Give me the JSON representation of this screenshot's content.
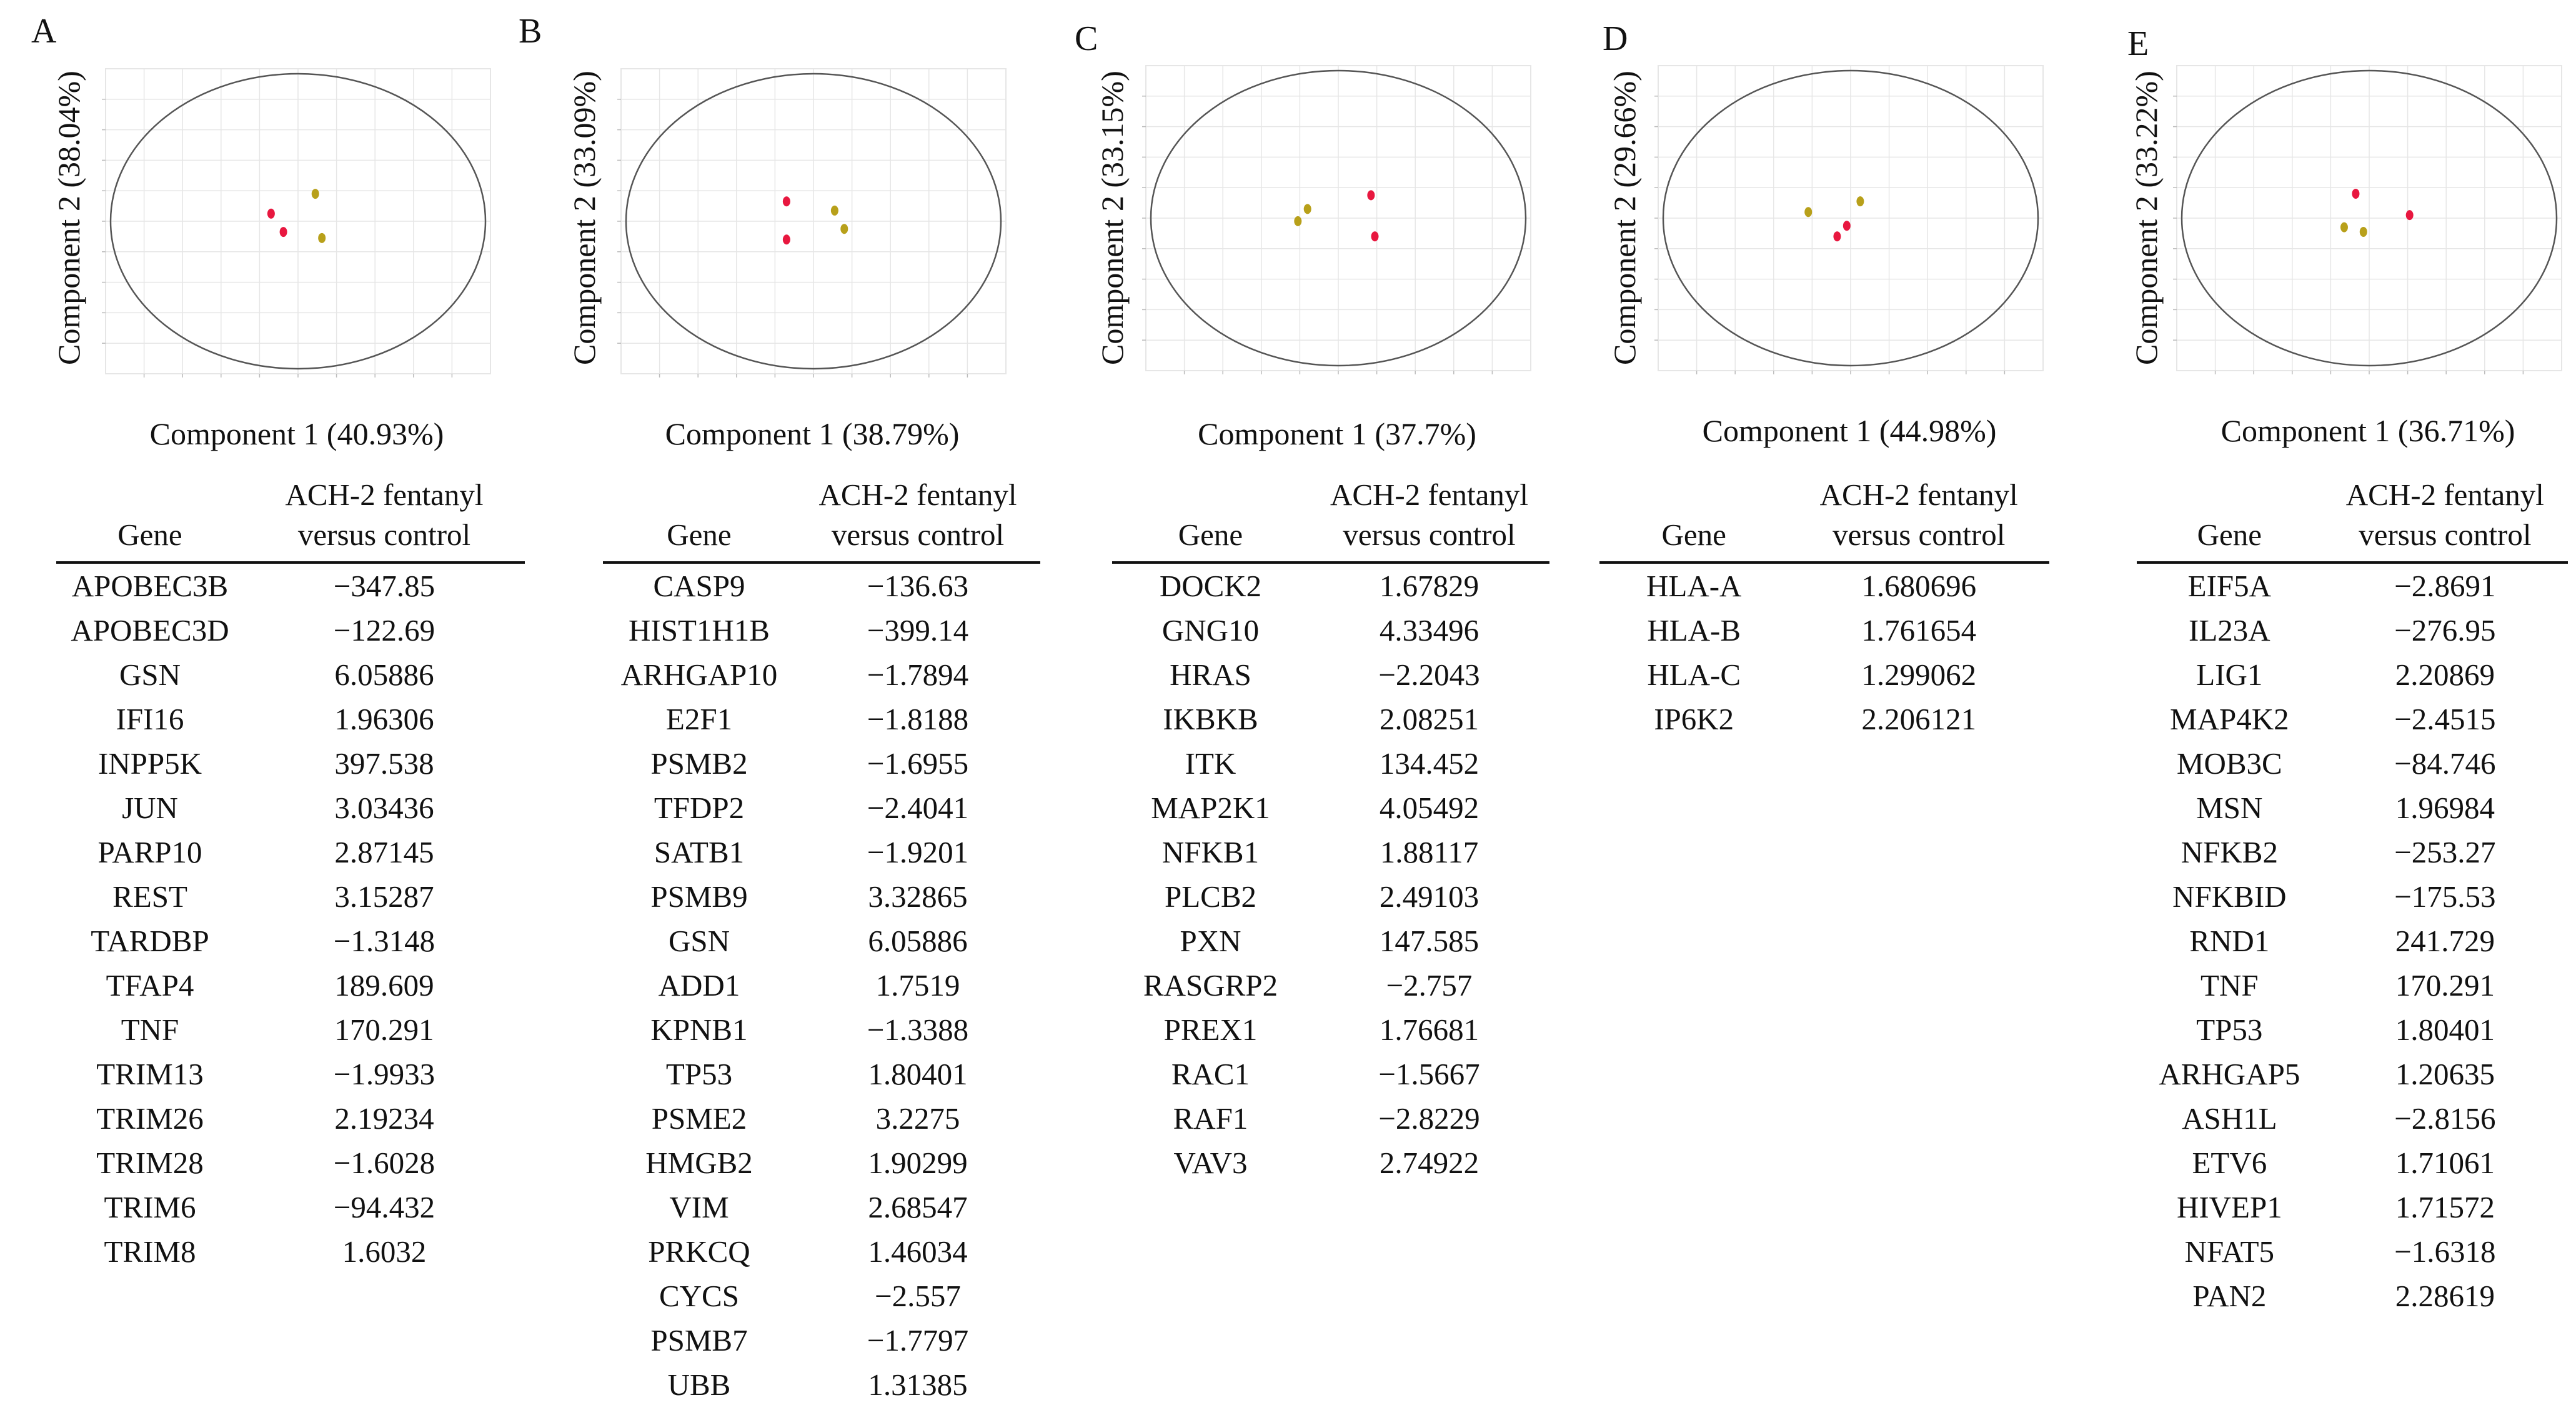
{
  "colors": {
    "control": "#e8173f",
    "fentanyl": "#b8a01a",
    "ellipse": "#555555",
    "grid": "#e6e6e6"
  },
  "table_header": {
    "gene": "Gene",
    "value_line1": "ACH-2 fentanyl",
    "value_line2": "versus control"
  },
  "panels": [
    {
      "letter": "A",
      "xlabel": "Component 1 (40.93%)",
      "ylabel": "Component 2 (38.04%)",
      "genes": [
        [
          "APOBEC3B",
          "−347.85"
        ],
        [
          "APOBEC3D",
          "−122.69"
        ],
        [
          "GSN",
          "6.05886"
        ],
        [
          "IFI16",
          "1.96306"
        ],
        [
          "INPP5K",
          "397.538"
        ],
        [
          "JUN",
          "3.03436"
        ],
        [
          "PARP10",
          "2.87145"
        ],
        [
          "REST",
          "3.15287"
        ],
        [
          "TARDBP",
          "−1.3148"
        ],
        [
          "TFAP4",
          "189.609"
        ],
        [
          "TNF",
          "170.291"
        ],
        [
          "TRIM13",
          "−1.9933"
        ],
        [
          "TRIM26",
          "2.19234"
        ],
        [
          "TRIM28",
          "−1.6028"
        ],
        [
          "TRIM6",
          "−94.432"
        ],
        [
          "TRIM8",
          "1.6032"
        ]
      ]
    },
    {
      "letter": "B",
      "xlabel": "Component 1 (38.79%)",
      "ylabel": "Component 2 (33.09%)",
      "genes": [
        [
          "CASP9",
          "−136.63"
        ],
        [
          "HIST1H1B",
          "−399.14"
        ],
        [
          "ARHGAP10",
          "−1.7894"
        ],
        [
          "E2F1",
          "−1.8188"
        ],
        [
          "PSMB2",
          "−1.6955"
        ],
        [
          "TFDP2",
          "−2.4041"
        ],
        [
          "SATB1",
          "−1.9201"
        ],
        [
          "PSMB9",
          "3.32865"
        ],
        [
          "GSN",
          "6.05886"
        ],
        [
          "ADD1",
          "1.7519"
        ],
        [
          "KPNB1",
          "−1.3388"
        ],
        [
          "TP53",
          "1.80401"
        ],
        [
          "PSME2",
          "3.2275"
        ],
        [
          "HMGB2",
          "1.90299"
        ],
        [
          "VIM",
          "2.68547"
        ],
        [
          "PRKCQ",
          "1.46034"
        ],
        [
          "CYCS",
          "−2.557"
        ],
        [
          "PSMB7",
          "−1.7797"
        ],
        [
          "UBB",
          "1.31385"
        ]
      ]
    },
    {
      "letter": "C",
      "xlabel": "Component 1 (37.7%)",
      "ylabel": "Component 2 (33.15%)",
      "genes": [
        [
          "DOCK2",
          "1.67829"
        ],
        [
          "GNG10",
          "4.33496"
        ],
        [
          "HRAS",
          "−2.2043"
        ],
        [
          "IKBKB",
          "2.08251"
        ],
        [
          "ITK",
          "134.452"
        ],
        [
          "MAP2K1",
          "4.05492"
        ],
        [
          "NFKB1",
          "1.88117"
        ],
        [
          "PLCB2",
          "2.49103"
        ],
        [
          "PXN",
          "147.585"
        ],
        [
          "RASGRP2",
          "−2.757"
        ],
        [
          "PREX1",
          "1.76681"
        ],
        [
          "RAC1",
          "−1.5667"
        ],
        [
          "RAF1",
          "−2.8229"
        ],
        [
          "VAV3",
          "2.74922"
        ]
      ]
    },
    {
      "letter": "D",
      "xlabel": "Component 1 (44.98%)",
      "ylabel": "Component 2 (29.66%)",
      "genes": [
        [
          "HLA-A",
          "1.680696"
        ],
        [
          "HLA-B",
          "1.761654"
        ],
        [
          "HLA-C",
          "1.299062"
        ],
        [
          "IP6K2",
          "2.206121"
        ]
      ]
    },
    {
      "letter": "E",
      "xlabel": "Component 1 (36.71%)",
      "ylabel": "Component 2 (33.22%)",
      "genes": [
        [
          "EIF5A",
          "−2.8691"
        ],
        [
          "IL23A",
          "−276.95"
        ],
        [
          "LIG1",
          "2.20869"
        ],
        [
          "MAP4K2",
          "−2.4515"
        ],
        [
          "MOB3C",
          "−84.746"
        ],
        [
          "MSN",
          "1.96984"
        ],
        [
          "NFKB2",
          "−253.27"
        ],
        [
          "NFKBID",
          "−175.53"
        ],
        [
          "RND1",
          "241.729"
        ],
        [
          "TNF",
          "170.291"
        ],
        [
          "TP53",
          "1.80401"
        ],
        [
          "ARHGAP5",
          "1.20635"
        ],
        [
          "ASH1L",
          "−2.8156"
        ],
        [
          "ETV6",
          "1.71061"
        ],
        [
          "HIVEP1",
          "1.71572"
        ],
        [
          "NFAT5",
          "−1.6318"
        ],
        [
          "PAN2",
          "2.28619"
        ]
      ]
    }
  ],
  "chart_data": [
    {
      "type": "scatter",
      "title": "A",
      "xlabel": "Component 1 (40.93%)",
      "ylabel": "Component 2 (38.04%)",
      "xlim": [
        -5,
        5
      ],
      "ylim": [
        -5,
        5
      ],
      "grid": true,
      "series": [
        {
          "name": "control",
          "color": "#e8173f",
          "points": [
            [
              -0.7,
              0.25
            ],
            [
              -0.38,
              -0.35
            ]
          ]
        },
        {
          "name": "fentanyl",
          "color": "#b8a01a",
          "points": [
            [
              0.45,
              0.9
            ],
            [
              0.62,
              -0.55
            ]
          ]
        }
      ]
    },
    {
      "type": "scatter",
      "title": "B",
      "xlabel": "Component 1 (38.79%)",
      "ylabel": "Component 2 (33.09%)",
      "xlim": [
        -5,
        5
      ],
      "ylim": [
        -5,
        5
      ],
      "grid": true,
      "series": [
        {
          "name": "control",
          "color": "#e8173f",
          "points": [
            [
              -0.7,
              0.65
            ],
            [
              -0.7,
              -0.6
            ]
          ]
        },
        {
          "name": "fentanyl",
          "color": "#b8a01a",
          "points": [
            [
              0.55,
              0.35
            ],
            [
              0.8,
              -0.25
            ]
          ]
        }
      ]
    },
    {
      "type": "scatter",
      "title": "C",
      "xlabel": "Component 1 (37.7%)",
      "ylabel": "Component 2 (33.15%)",
      "xlim": [
        -5,
        5
      ],
      "ylim": [
        -5,
        5
      ],
      "grid": true,
      "series": [
        {
          "name": "control",
          "color": "#e8173f",
          "points": [
            [
              0.85,
              0.75
            ],
            [
              0.95,
              -0.6
            ]
          ]
        },
        {
          "name": "fentanyl",
          "color": "#b8a01a",
          "points": [
            [
              -0.8,
              0.3
            ],
            [
              -1.05,
              -0.1
            ]
          ]
        }
      ]
    },
    {
      "type": "scatter",
      "title": "D",
      "xlabel": "Component 1 (44.98%)",
      "ylabel": "Component 2 (29.66%)",
      "xlim": [
        -5,
        5
      ],
      "ylim": [
        -5,
        5
      ],
      "grid": true,
      "series": [
        {
          "name": "control",
          "color": "#e8173f",
          "points": [
            [
              -0.1,
              -0.25
            ],
            [
              -0.35,
              -0.6
            ]
          ]
        },
        {
          "name": "fentanyl",
          "color": "#b8a01a",
          "points": [
            [
              -1.1,
              0.2
            ],
            [
              0.25,
              0.55
            ]
          ]
        }
      ]
    },
    {
      "type": "scatter",
      "title": "E",
      "xlabel": "Component 1 (36.71%)",
      "ylabel": "Component 2 (33.22%)",
      "xlim": [
        -5,
        5
      ],
      "ylim": [
        -5,
        5
      ],
      "grid": true,
      "series": [
        {
          "name": "control",
          "color": "#e8173f",
          "points": [
            [
              -0.35,
              0.8
            ],
            [
              1.05,
              0.1
            ]
          ]
        },
        {
          "name": "fentanyl",
          "color": "#b8a01a",
          "points": [
            [
              -0.65,
              -0.3
            ],
            [
              -0.15,
              -0.45
            ]
          ]
        }
      ]
    }
  ]
}
